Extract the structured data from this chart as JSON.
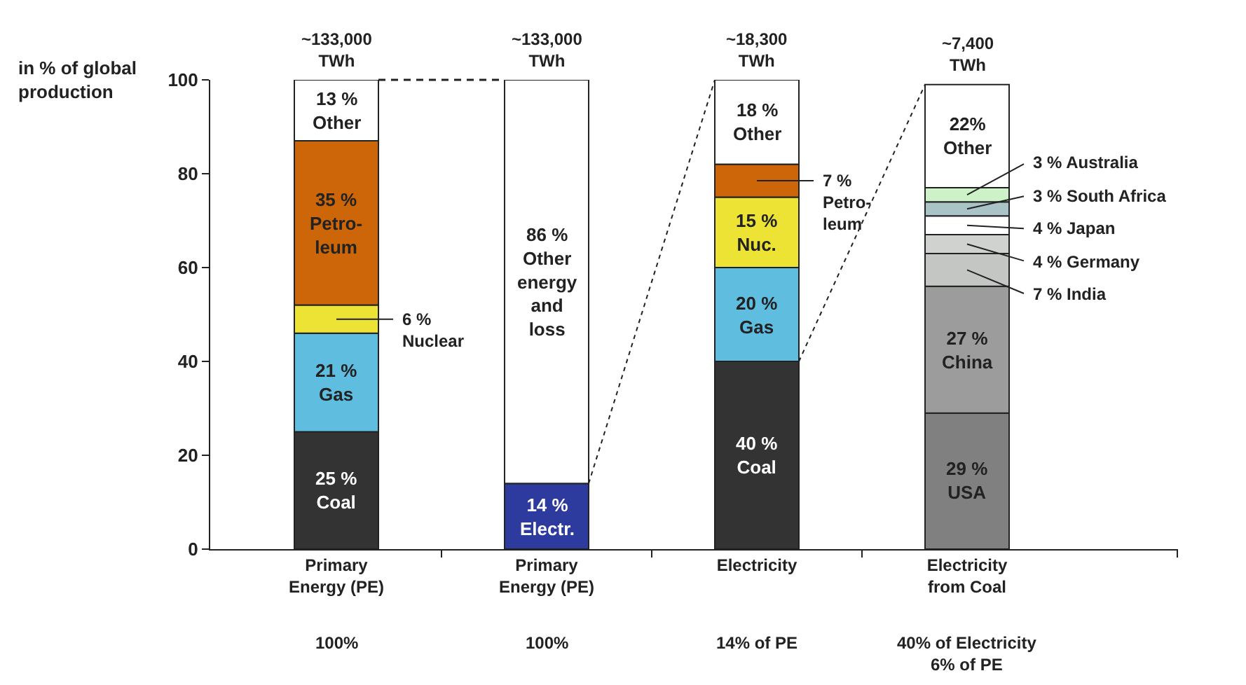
{
  "chart_data": {
    "type": "bar",
    "stacked": true,
    "ylabel": "in % of global\nproduction",
    "categories": [
      "Primary\nEnergy (PE)",
      "Primary\nEnergy (PE)",
      "Electricity",
      "Electricity\nfrom Coal"
    ],
    "ylim": [
      0,
      100
    ],
    "yticks": [
      0,
      20,
      40,
      60,
      80,
      100
    ],
    "annotations": [
      "~133,000\nTWh",
      "~133,000\nTWh",
      "~18,300\nTWh",
      "~7,400\nTWh",
      "100%",
      "100%",
      "14% of PE",
      "40% of Electricity\n6% of PE"
    ],
    "series": [
      {
        "values": [
          25,
          14,
          40,
          29
        ],
        "colors": [
          "#333333",
          "#2e3b9e",
          "#333333",
          "#808080"
        ],
        "value_labels": [
          "25 %\nCoal",
          "14 %\nElectr.",
          "40 %\nCoal",
          "29 %\nUSA"
        ]
      },
      {
        "values": [
          21,
          86,
          20,
          27
        ],
        "colors": [
          "#5fbde0",
          "#ffffff",
          "#5fbde0",
          "#9c9c9c"
        ],
        "value_labels": [
          "21 %\nGas",
          "86 %\nOther\nenergy\nand\nloss",
          "20 %\nGas",
          "27 %\nChina"
        ]
      },
      {
        "values": [
          6,
          null,
          15,
          7
        ],
        "colors": [
          "#ede335",
          "#ffffff",
          "#ede335",
          "#c4c6c4"
        ],
        "value_labels": [
          "6 %\nNuclear",
          null,
          "15 %\nNuc.",
          "7 % India"
        ]
      },
      {
        "values": [
          35,
          null,
          7,
          4
        ],
        "colors": [
          "#cc6608",
          "#ffffff",
          "#cc6608",
          "#d0d2d0"
        ],
        "value_labels": [
          "35 %\nPetro-\nleum",
          null,
          "7 %\nPetro-\nleum",
          "4 % Germany"
        ]
      },
      {
        "values": [
          13,
          null,
          18,
          4
        ],
        "colors": [
          "#ffffff",
          "#ffffff",
          "#ffffff",
          "#ffffff"
        ],
        "value_labels": [
          "13 %\nOther",
          null,
          "18 %\nOther",
          "4 % Japan"
        ]
      },
      {
        "values": [
          null,
          null,
          null,
          3
        ],
        "colors": [
          "#ffffff",
          "#ffffff",
          "#ffffff",
          "#a9c3c6"
        ],
        "value_labels": [
          null,
          null,
          null,
          "3 % South Africa"
        ]
      },
      {
        "values": [
          null,
          null,
          null,
          3
        ],
        "colors": [
          "#ffffff",
          "#ffffff",
          "#ffffff",
          "#cdf2c8"
        ],
        "value_labels": [
          null,
          null,
          null,
          "3 % Australia"
        ]
      },
      {
        "values": [
          null,
          null,
          null,
          22
        ],
        "colors": [
          "#ffffff",
          "#ffffff",
          "#ffffff",
          "#ffffff"
        ],
        "value_labels": [
          null,
          null,
          null,
          "22%\nOther"
        ]
      }
    ]
  }
}
